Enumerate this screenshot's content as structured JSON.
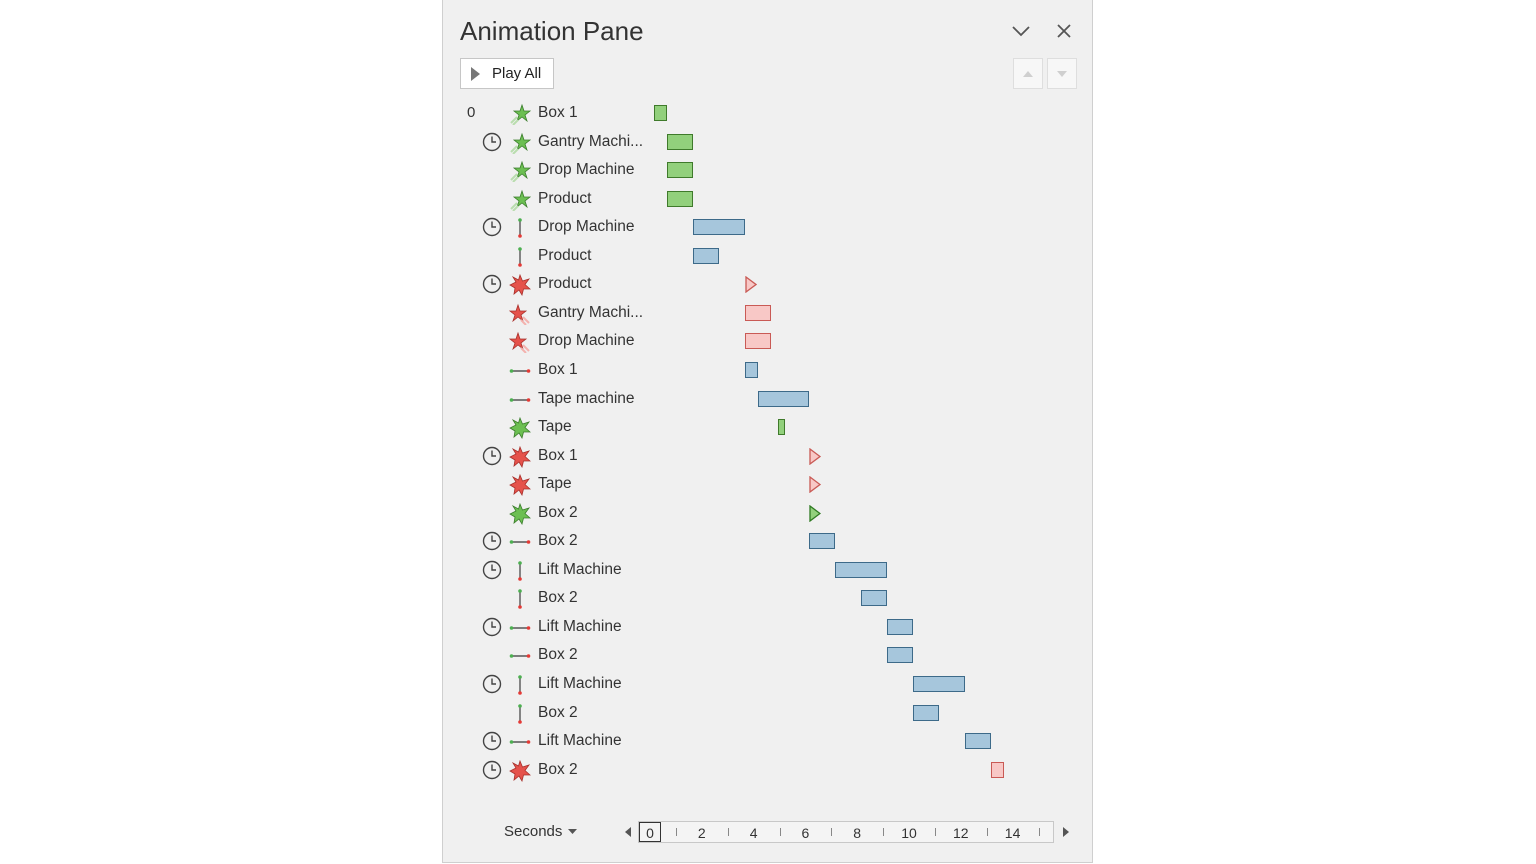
{
  "pane": {
    "title": "Animation Pane",
    "play_all_label": "Play All",
    "collapse_icon": "chevron-down-icon",
    "close_icon": "close-icon"
  },
  "timeline": {
    "seconds_label": "Seconds",
    "ticks": [
      "0",
      "2",
      "4",
      "6",
      "8",
      "10",
      "12",
      "14"
    ]
  },
  "colors": {
    "entrance_fill": "#92d07c",
    "motion_path_fill": "#a6c6dc",
    "exit_fill": "#f8c8c6"
  },
  "animations": [
    {
      "order": "0",
      "clock": false,
      "effect": "entrance-icon",
      "label": "Box 1",
      "bar": "entr",
      "start": 0,
      "end": 0.5
    },
    {
      "order": "",
      "clock": true,
      "effect": "entrance-icon",
      "label": "Gantry Machi...",
      "bar": "entr",
      "start": 0.5,
      "end": 1.5
    },
    {
      "order": "",
      "clock": false,
      "effect": "entrance-icon",
      "label": "Drop Machine",
      "bar": "entr",
      "start": 0.5,
      "end": 1.5
    },
    {
      "order": "",
      "clock": false,
      "effect": "entrance-icon",
      "label": "Product",
      "bar": "entr",
      "start": 0.5,
      "end": 1.5
    },
    {
      "order": "",
      "clock": true,
      "effect": "motion-vertical-icon",
      "label": "Drop Machine",
      "bar": "path",
      "start": 1.5,
      "end": 3.5
    },
    {
      "order": "",
      "clock": false,
      "effect": "motion-vertical-icon",
      "label": "Product",
      "bar": "path",
      "start": 1.5,
      "end": 2.5
    },
    {
      "order": "",
      "clock": true,
      "effect": "exit-burst-icon",
      "label": "Product",
      "bar": "exit-instant",
      "start": 3.5,
      "end": 3.5
    },
    {
      "order": "",
      "clock": false,
      "effect": "exit-icon",
      "label": "Gantry Machi...",
      "bar": "exit",
      "start": 3.5,
      "end": 4.5
    },
    {
      "order": "",
      "clock": false,
      "effect": "exit-icon",
      "label": "Drop Machine",
      "bar": "exit",
      "start": 3.5,
      "end": 4.5
    },
    {
      "order": "",
      "clock": false,
      "effect": "motion-horizontal-icon",
      "label": "Box 1",
      "bar": "path",
      "start": 3.5,
      "end": 4
    },
    {
      "order": "",
      "clock": false,
      "effect": "motion-horizontal-icon",
      "label": "Tape machine",
      "bar": "path",
      "start": 4,
      "end": 6
    },
    {
      "order": "",
      "clock": false,
      "effect": "entrance-burst-icon",
      "label": "Tape",
      "bar": "entr",
      "start": 4.8,
      "end": 5.05
    },
    {
      "order": "",
      "clock": true,
      "effect": "exit-burst-icon",
      "label": "Box 1",
      "bar": "exit-instant",
      "start": 6,
      "end": 6
    },
    {
      "order": "",
      "clock": false,
      "effect": "exit-burst-icon",
      "label": "Tape",
      "bar": "exit-instant",
      "start": 6,
      "end": 6
    },
    {
      "order": "",
      "clock": false,
      "effect": "entrance-burst-icon",
      "label": "Box 2",
      "bar": "entr-instant",
      "start": 6,
      "end": 6
    },
    {
      "order": "",
      "clock": true,
      "effect": "motion-horizontal-icon",
      "label": "Box 2",
      "bar": "path",
      "start": 6,
      "end": 7
    },
    {
      "order": "",
      "clock": true,
      "effect": "motion-vertical-icon",
      "label": "Lift Machine",
      "bar": "path",
      "start": 7,
      "end": 9
    },
    {
      "order": "",
      "clock": false,
      "effect": "motion-vertical-icon",
      "label": "Box 2",
      "bar": "path",
      "start": 8,
      "end": 9
    },
    {
      "order": "",
      "clock": true,
      "effect": "motion-horizontal-icon",
      "label": "Lift Machine",
      "bar": "path",
      "start": 9,
      "end": 10
    },
    {
      "order": "",
      "clock": false,
      "effect": "motion-horizontal-icon",
      "label": "Box 2",
      "bar": "path",
      "start": 9,
      "end": 10
    },
    {
      "order": "",
      "clock": true,
      "effect": "motion-vertical-icon",
      "label": "Lift Machine",
      "bar": "path",
      "start": 10,
      "end": 12
    },
    {
      "order": "",
      "clock": false,
      "effect": "motion-vertical-icon",
      "label": "Box 2",
      "bar": "path",
      "start": 10,
      "end": 11
    },
    {
      "order": "",
      "clock": true,
      "effect": "motion-horizontal-icon",
      "label": "Lift Machine",
      "bar": "path",
      "start": 12,
      "end": 13
    },
    {
      "order": "",
      "clock": true,
      "effect": "exit-burst-icon",
      "label": "Box 2",
      "bar": "exit",
      "start": 13,
      "end": 13.5
    }
  ]
}
